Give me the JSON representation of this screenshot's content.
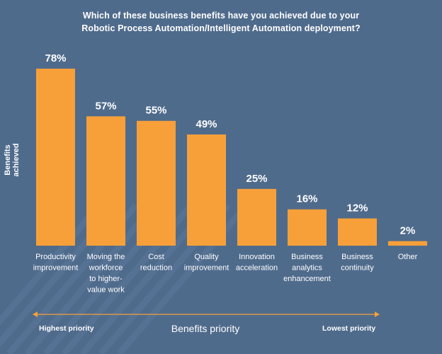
{
  "title_lines": [
    "Which of these business benefits have you achieved due to your",
    "Robotic Process Automation/Intelligent Automation deployment?"
  ],
  "colors": {
    "background": "#4f6b8c",
    "bar": "#f7a03a",
    "text": "#ffffff",
    "arrow": "#f7a03a",
    "stripe": "#5a769a"
  },
  "chart_data": {
    "type": "bar",
    "title": "Which of these business benefits have you achieved due to your Robotic Process Automation/Intelligent Automation deployment?",
    "ylabel": "Benefits achieved",
    "xlabel": "Benefits priority",
    "categories": [
      [
        "Productivity",
        "improvement"
      ],
      [
        "Moving the",
        "workforce",
        "to higher-",
        "value work"
      ],
      [
        "Cost",
        "reduction"
      ],
      [
        "Quality",
        "improvement"
      ],
      [
        "Innovation",
        "acceleration"
      ],
      [
        "Business",
        "analytics",
        "enhancement"
      ],
      [
        "Business",
        "continuity"
      ],
      [
        "Other"
      ]
    ],
    "values": [
      78,
      57,
      55,
      49,
      25,
      16,
      12,
      2
    ],
    "value_labels": [
      "78%",
      "57%",
      "55%",
      "49%",
      "25%",
      "16%",
      "12%",
      "2%"
    ],
    "ylim": [
      0,
      78
    ],
    "grid": false,
    "priority_axis": {
      "left_label": "Highest priority",
      "center_label": "Benefits priority",
      "right_label": "Lowest priority"
    }
  }
}
